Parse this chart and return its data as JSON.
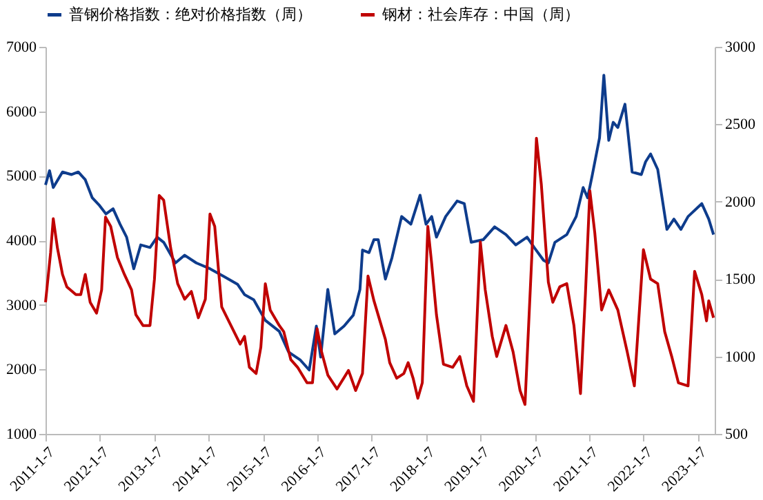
{
  "chart_data": {
    "type": "line",
    "legend": "top",
    "xlim": [
      "2011-01-07",
      "2023-05-01"
    ],
    "xticks": [
      {
        "value": "2011-01-07",
        "label": "2011-1-7"
      },
      {
        "value": "2012-01-07",
        "label": "2012-1-7"
      },
      {
        "value": "2013-01-07",
        "label": "2013-1-7"
      },
      {
        "value": "2014-01-07",
        "label": "2014-1-7"
      },
      {
        "value": "2015-01-07",
        "label": "2015-1-7"
      },
      {
        "value": "2016-01-07",
        "label": "2016-1-7"
      },
      {
        "value": "2017-01-07",
        "label": "2017-1-7"
      },
      {
        "value": "2018-01-07",
        "label": "2018-1-7"
      },
      {
        "value": "2019-01-07",
        "label": "2019-1-7"
      },
      {
        "value": "2020-01-07",
        "label": "2020-1-7"
      },
      {
        "value": "2021-01-07",
        "label": "2021-1-7"
      },
      {
        "value": "2022-01-07",
        "label": "2022-1-7"
      },
      {
        "value": "2023-01-07",
        "label": "2023-1-7"
      }
    ],
    "ylim": [
      1000,
      7000
    ],
    "yticks": [
      1000,
      2000,
      3000,
      4000,
      5000,
      6000,
      7000
    ],
    "y2lim": [
      500,
      3000
    ],
    "y2ticks": [
      500,
      1000,
      1500,
      2000,
      2500,
      3000
    ],
    "series": [
      {
        "name": "普钢价格指数：绝对价格指数（周）",
        "color": "#0e3c8c",
        "x": [
          "2011-01-07",
          "2011-02-03",
          "2011-02-28",
          "2011-05-01",
          "2011-07-01",
          "2011-08-15",
          "2011-10-01",
          "2011-11-17",
          "2012-01-05",
          "2012-02-17",
          "2012-04-05",
          "2012-05-22",
          "2012-07-05",
          "2012-08-22",
          "2012-10-08",
          "2012-12-09",
          "2013-01-26",
          "2013-03-11",
          "2013-05-29",
          "2013-07-30",
          "2013-10-16",
          "2014-01-16",
          "2014-04-20",
          "2014-07-20",
          "2014-09-05",
          "2014-11-06",
          "2015-01-23",
          "2015-04-27",
          "2015-06-28",
          "2015-09-13",
          "2015-11-14",
          "2016-01-01",
          "2016-01-30",
          "2016-03-18",
          "2016-05-04",
          "2016-07-05",
          "2016-09-05",
          "2016-10-20",
          "2016-11-06",
          "2016-12-20",
          "2017-01-22",
          "2017-02-20",
          "2017-04-09",
          "2017-05-23",
          "2017-07-27",
          "2017-09-27",
          "2017-11-28",
          "2018-01-07",
          "2018-02-14",
          "2018-03-18",
          "2018-05-19",
          "2018-08-04",
          "2018-09-21",
          "2018-11-07",
          "2019-01-26",
          "2019-04-13",
          "2019-06-28",
          "2019-09-02",
          "2019-11-17",
          "2020-01-04",
          "2020-03-07",
          "2020-04-08",
          "2020-05-22",
          "2020-08-10",
          "2020-10-12",
          "2020-11-28",
          "2020-12-28",
          "2021-01-29",
          "2021-03-18",
          "2021-04-16",
          "2021-05-19",
          "2021-06-18",
          "2021-07-19",
          "2021-09-05",
          "2021-10-23",
          "2021-12-24",
          "2022-01-22",
          "2022-02-24",
          "2022-04-13",
          "2022-06-14",
          "2022-07-31",
          "2022-09-16",
          "2022-11-03",
          "2023-02-03",
          "2023-03-22",
          "2023-04-23"
        ],
        "values": [
          4860,
          5080,
          4820,
          5060,
          5020,
          5060,
          4940,
          4660,
          4540,
          4410,
          4490,
          4250,
          4050,
          3560,
          3930,
          3890,
          4050,
          3970,
          3650,
          3770,
          3650,
          3560,
          3440,
          3320,
          3160,
          3080,
          2760,
          2590,
          2270,
          2150,
          1990,
          2670,
          2190,
          3240,
          2550,
          2670,
          2840,
          3240,
          3850,
          3810,
          4010,
          4010,
          3400,
          3730,
          4370,
          4250,
          4700,
          4250,
          4370,
          4050,
          4370,
          4610,
          4570,
          3970,
          4010,
          4210,
          4090,
          3930,
          4050,
          3890,
          3690,
          3650,
          3970,
          4090,
          4370,
          4820,
          4660,
          5020,
          5590,
          6560,
          5550,
          5830,
          5750,
          6110,
          5060,
          5020,
          5220,
          5340,
          5100,
          4170,
          4330,
          4170,
          4370,
          4570,
          4330,
          4090
        ]
      },
      {
        "name": "钢材：社会库存：中国（周）",
        "color": "#c00000",
        "axis": "y2",
        "x": [
          "2011-01-07",
          "2011-02-10",
          "2011-02-28",
          "2011-03-28",
          "2011-05-01",
          "2011-05-30",
          "2011-07-30",
          "2011-09-01",
          "2011-10-01",
          "2011-11-03",
          "2011-12-16",
          "2012-01-19",
          "2012-02-14",
          "2012-03-20",
          "2012-05-04",
          "2012-06-20",
          "2012-08-07",
          "2012-09-05",
          "2012-10-23",
          "2012-12-09",
          "2013-01-08",
          "2013-02-09",
          "2013-03-11",
          "2013-04-27",
          "2013-06-13",
          "2013-07-30",
          "2013-09-13",
          "2013-10-30",
          "2013-12-16",
          "2014-01-16",
          "2014-02-17",
          "2014-04-05",
          "2014-06-06",
          "2014-08-07",
          "2014-09-05",
          "2014-10-08",
          "2014-11-22",
          "2014-12-24",
          "2015-01-23",
          "2015-02-25",
          "2015-04-27",
          "2015-05-27",
          "2015-07-13",
          "2015-08-28",
          "2015-10-30",
          "2015-12-06",
          "2016-01-06",
          "2016-02-05",
          "2016-03-18",
          "2016-05-19",
          "2016-08-04",
          "2016-09-21",
          "2016-11-06",
          "2016-12-13",
          "2017-01-22",
          "2017-04-09",
          "2017-05-08",
          "2017-06-24",
          "2017-08-11",
          "2017-09-09",
          "2017-10-12",
          "2017-11-13",
          "2017-12-13",
          "2018-01-19",
          "2018-02-14",
          "2018-03-18",
          "2018-05-04",
          "2018-07-05",
          "2018-08-22",
          "2018-10-08",
          "2018-11-22",
          "2019-01-07",
          "2019-02-09",
          "2019-03-28",
          "2019-04-27",
          "2019-06-28",
          "2019-08-15",
          "2019-10-01",
          "2019-11-03",
          "2019-12-20",
          "2020-01-19",
          "2020-02-21",
          "2020-04-08",
          "2020-05-08",
          "2020-06-24",
          "2020-08-10",
          "2020-09-27",
          "2020-11-10",
          "2020-12-13",
          "2021-01-12",
          "2021-02-14",
          "2021-04-01",
          "2021-05-19",
          "2021-07-19",
          "2021-09-20",
          "2021-11-07",
          "2022-01-07",
          "2022-02-24",
          "2022-04-13",
          "2022-05-30",
          "2022-07-16",
          "2022-08-30",
          "2022-11-03",
          "2022-12-17",
          "2023-02-03",
          "2023-03-07",
          "2023-03-22",
          "2023-04-23"
        ],
        "values": [
          1350,
          1670,
          1890,
          1700,
          1530,
          1450,
          1400,
          1400,
          1530,
          1350,
          1280,
          1430,
          1900,
          1840,
          1640,
          1530,
          1430,
          1270,
          1200,
          1200,
          1500,
          2040,
          2010,
          1700,
          1470,
          1370,
          1420,
          1250,
          1370,
          1920,
          1840,
          1320,
          1200,
          1080,
          1130,
          930,
          890,
          1060,
          1470,
          1300,
          1200,
          1160,
          980,
          930,
          830,
          830,
          1180,
          1030,
          880,
          790,
          910,
          780,
          890,
          1520,
          1360,
          1110,
          960,
          860,
          890,
          960,
          860,
          730,
          830,
          1840,
          1600,
          1270,
          950,
          930,
          1000,
          810,
          710,
          1740,
          1430,
          1130,
          1000,
          1200,
          1030,
          780,
          690,
          1670,
          2410,
          2110,
          1480,
          1350,
          1450,
          1470,
          1200,
          760,
          1400,
          2070,
          1800,
          1300,
          1430,
          1300,
          1030,
          810,
          1690,
          1500,
          1470,
          1160,
          1000,
          830,
          810,
          1550,
          1400,
          1230,
          1360,
          1250
        ]
      }
    ]
  }
}
